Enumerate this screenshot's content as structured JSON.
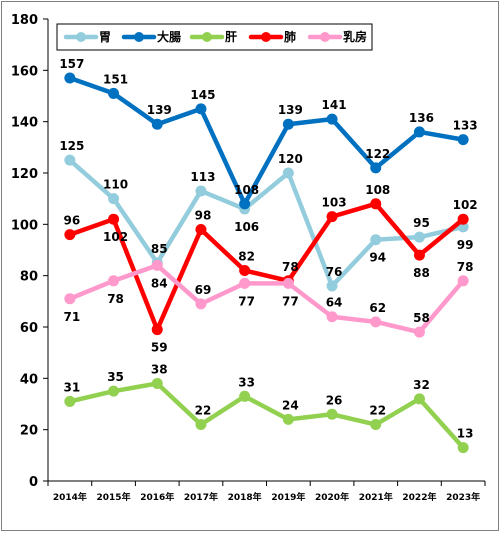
{
  "chart_data": {
    "type": "line",
    "title": "",
    "xlabel": "",
    "ylabel": "",
    "ylim": [
      0,
      180
    ],
    "yticks": [
      0,
      20,
      40,
      60,
      80,
      100,
      120,
      140,
      160,
      180
    ],
    "grid": false,
    "legend_position": "top-left",
    "categories": [
      "2014年",
      "2015年",
      "2016年",
      "2017年",
      "2018年",
      "2019年",
      "2020年",
      "2021年",
      "2022年",
      "2023年"
    ],
    "series": [
      {
        "name": "胃",
        "color": "#93CDDD",
        "values": [
          125,
          110,
          85,
          113,
          106,
          120,
          76,
          94,
          95,
          99
        ],
        "label_pos": [
          "above",
          "above",
          "above",
          "above",
          "below",
          "above",
          "above",
          "below",
          "above",
          "below"
        ]
      },
      {
        "name": "大腸",
        "color": "#0070C0",
        "values": [
          157,
          151,
          139,
          145,
          108,
          139,
          141,
          122,
          136,
          133
        ],
        "label_pos": [
          "above",
          "above",
          "above",
          "above",
          "above",
          "above",
          "above",
          "above",
          "above",
          "above"
        ]
      },
      {
        "name": "肝",
        "color": "#92D050",
        "values": [
          31,
          35,
          38,
          22,
          33,
          24,
          26,
          22,
          32,
          13
        ],
        "label_pos": [
          "above",
          "above",
          "above",
          "above",
          "above",
          "above",
          "above",
          "above",
          "above",
          "above"
        ]
      },
      {
        "name": "肺",
        "color": "#FF0000",
        "values": [
          96,
          102,
          59,
          98,
          82,
          78,
          103,
          108,
          88,
          102
        ],
        "label_pos": [
          "above",
          "below",
          "below",
          "above",
          "above",
          "above",
          "above",
          "above",
          "below",
          "above"
        ]
      },
      {
        "name": "乳房",
        "color": "#FF99CC",
        "values": [
          71,
          78,
          84,
          69,
          77,
          77,
          64,
          62,
          58,
          78
        ],
        "label_pos": [
          "below",
          "below",
          "below",
          "above",
          "below",
          "below",
          "above",
          "above",
          "above",
          "above"
        ]
      }
    ]
  }
}
